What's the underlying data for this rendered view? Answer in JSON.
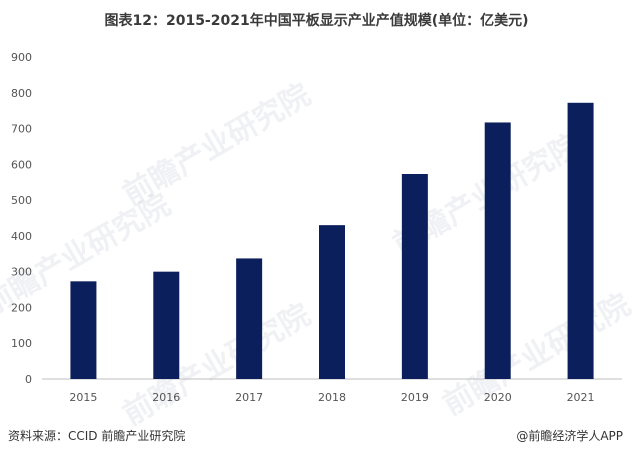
{
  "chart_data": {
    "type": "bar",
    "title": "图表12：2015-2021年中国平板显示产业产值规模(单位：亿美元)",
    "xlabel": "",
    "ylabel": "",
    "categories": [
      "2015",
      "2016",
      "2017",
      "2018",
      "2019",
      "2020",
      "2021"
    ],
    "values": [
      273,
      300,
      337,
      430,
      573,
      717,
      772
    ],
    "ylim": [
      0,
      900
    ],
    "yticks": [
      0,
      100,
      200,
      300,
      400,
      500,
      600,
      700,
      800,
      900
    ],
    "grid": false,
    "bar_color": "#0b1f5c"
  },
  "footer": {
    "source": "资料来源：CCID 前瞻产业研究院",
    "credit": "@前瞻经济学人APP"
  },
  "watermark": "前瞻产业研究院"
}
